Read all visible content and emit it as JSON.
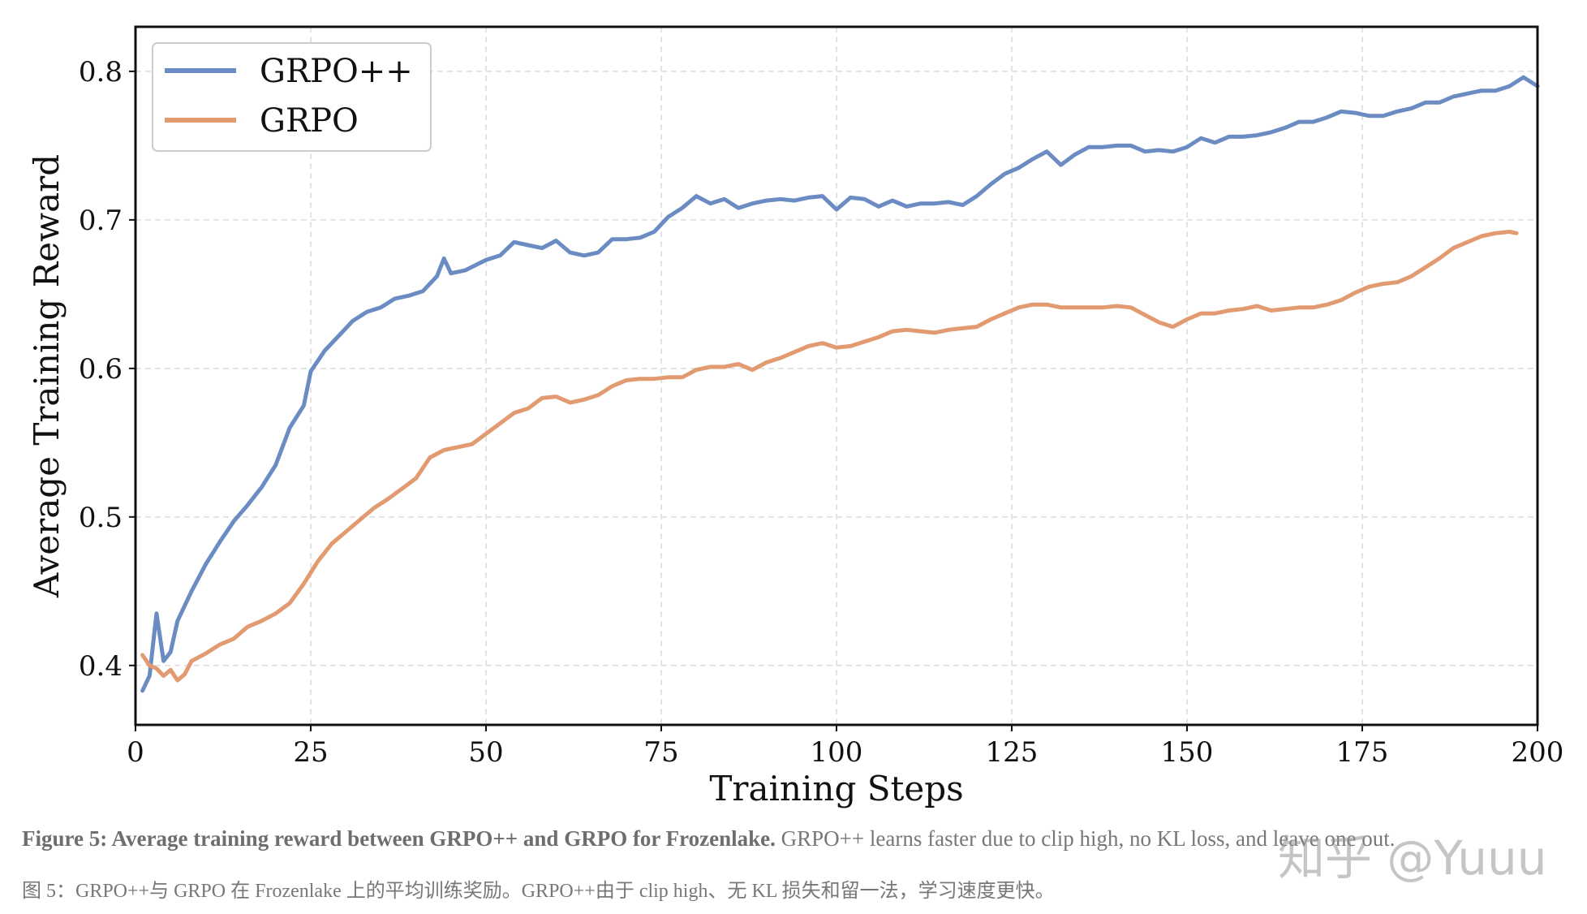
{
  "chart_data": {
    "type": "line",
    "xlabel": "Training Steps",
    "ylabel": "Average Training Reward",
    "xlim": [
      0,
      200
    ],
    "ylim": [
      0.36,
      0.83
    ],
    "xticks": [
      0,
      25,
      50,
      75,
      100,
      125,
      150,
      175,
      200
    ],
    "xtick_labels": [
      "0",
      "25",
      "50",
      "75",
      "100",
      "125",
      "150",
      "175",
      "200"
    ],
    "yticks": [
      0.4,
      0.5,
      0.6,
      0.7,
      0.8
    ],
    "ytick_labels": [
      "0.4",
      "0.5",
      "0.6",
      "0.7",
      "0.8"
    ],
    "grid": true,
    "legend_position": "top-left",
    "series": [
      {
        "name": "GRPO++",
        "color": "#6b8cc3",
        "points": [
          [
            1,
            0.383
          ],
          [
            2,
            0.393
          ],
          [
            3,
            0.435
          ],
          [
            4,
            0.403
          ],
          [
            5,
            0.409
          ],
          [
            6,
            0.43
          ],
          [
            8,
            0.45
          ],
          [
            10,
            0.468
          ],
          [
            12,
            0.483
          ],
          [
            14,
            0.497
          ],
          [
            16,
            0.508
          ],
          [
            18,
            0.52
          ],
          [
            20,
            0.535
          ],
          [
            22,
            0.56
          ],
          [
            24,
            0.575
          ],
          [
            25,
            0.598
          ],
          [
            27,
            0.612
          ],
          [
            29,
            0.622
          ],
          [
            31,
            0.632
          ],
          [
            33,
            0.638
          ],
          [
            35,
            0.641
          ],
          [
            37,
            0.647
          ],
          [
            39,
            0.649
          ],
          [
            41,
            0.652
          ],
          [
            43,
            0.662
          ],
          [
            44,
            0.674
          ],
          [
            45,
            0.664
          ],
          [
            47,
            0.666
          ],
          [
            50,
            0.673
          ],
          [
            52,
            0.676
          ],
          [
            54,
            0.685
          ],
          [
            56,
            0.683
          ],
          [
            58,
            0.681
          ],
          [
            60,
            0.686
          ],
          [
            62,
            0.678
          ],
          [
            64,
            0.676
          ],
          [
            66,
            0.678
          ],
          [
            68,
            0.687
          ],
          [
            70,
            0.687
          ],
          [
            72,
            0.688
          ],
          [
            74,
            0.692
          ],
          [
            76,
            0.702
          ],
          [
            78,
            0.708
          ],
          [
            80,
            0.716
          ],
          [
            82,
            0.711
          ],
          [
            84,
            0.714
          ],
          [
            86,
            0.708
          ],
          [
            88,
            0.711
          ],
          [
            90,
            0.713
          ],
          [
            92,
            0.714
          ],
          [
            94,
            0.713
          ],
          [
            96,
            0.715
          ],
          [
            98,
            0.716
          ],
          [
            100,
            0.707
          ],
          [
            102,
            0.715
          ],
          [
            104,
            0.714
          ],
          [
            106,
            0.709
          ],
          [
            108,
            0.713
          ],
          [
            110,
            0.709
          ],
          [
            112,
            0.711
          ],
          [
            114,
            0.711
          ],
          [
            116,
            0.712
          ],
          [
            118,
            0.71
          ],
          [
            120,
            0.716
          ],
          [
            122,
            0.724
          ],
          [
            124,
            0.731
          ],
          [
            126,
            0.735
          ],
          [
            128,
            0.741
          ],
          [
            130,
            0.746
          ],
          [
            132,
            0.737
          ],
          [
            134,
            0.744
          ],
          [
            136,
            0.749
          ],
          [
            138,
            0.749
          ],
          [
            140,
            0.75
          ],
          [
            142,
            0.75
          ],
          [
            144,
            0.746
          ],
          [
            146,
            0.747
          ],
          [
            148,
            0.746
          ],
          [
            150,
            0.749
          ],
          [
            152,
            0.755
          ],
          [
            154,
            0.752
          ],
          [
            156,
            0.756
          ],
          [
            158,
            0.756
          ],
          [
            160,
            0.757
          ],
          [
            162,
            0.759
          ],
          [
            164,
            0.762
          ],
          [
            166,
            0.766
          ],
          [
            168,
            0.766
          ],
          [
            170,
            0.769
          ],
          [
            172,
            0.773
          ],
          [
            174,
            0.772
          ],
          [
            176,
            0.77
          ],
          [
            178,
            0.77
          ],
          [
            180,
            0.773
          ],
          [
            182,
            0.775
          ],
          [
            184,
            0.779
          ],
          [
            186,
            0.779
          ],
          [
            188,
            0.783
          ],
          [
            190,
            0.785
          ],
          [
            192,
            0.787
          ],
          [
            194,
            0.787
          ],
          [
            196,
            0.79
          ],
          [
            198,
            0.796
          ],
          [
            200,
            0.79
          ]
        ]
      },
      {
        "name": "GRPO",
        "color": "#e29a70",
        "points": [
          [
            1,
            0.407
          ],
          [
            2,
            0.4
          ],
          [
            3,
            0.398
          ],
          [
            4,
            0.393
          ],
          [
            5,
            0.397
          ],
          [
            6,
            0.39
          ],
          [
            7,
            0.394
          ],
          [
            8,
            0.403
          ],
          [
            10,
            0.408
          ],
          [
            12,
            0.414
          ],
          [
            14,
            0.418
          ],
          [
            16,
            0.426
          ],
          [
            18,
            0.43
          ],
          [
            20,
            0.435
          ],
          [
            22,
            0.442
          ],
          [
            24,
            0.455
          ],
          [
            26,
            0.47
          ],
          [
            28,
            0.482
          ],
          [
            30,
            0.49
          ],
          [
            32,
            0.498
          ],
          [
            34,
            0.506
          ],
          [
            36,
            0.512
          ],
          [
            38,
            0.519
          ],
          [
            40,
            0.526
          ],
          [
            42,
            0.54
          ],
          [
            44,
            0.545
          ],
          [
            46,
            0.547
          ],
          [
            48,
            0.549
          ],
          [
            50,
            0.556
          ],
          [
            52,
            0.563
          ],
          [
            54,
            0.57
          ],
          [
            56,
            0.573
          ],
          [
            58,
            0.58
          ],
          [
            60,
            0.581
          ],
          [
            62,
            0.577
          ],
          [
            64,
            0.579
          ],
          [
            66,
            0.582
          ],
          [
            68,
            0.588
          ],
          [
            70,
            0.592
          ],
          [
            72,
            0.593
          ],
          [
            74,
            0.593
          ],
          [
            76,
            0.594
          ],
          [
            78,
            0.594
          ],
          [
            80,
            0.599
          ],
          [
            82,
            0.601
          ],
          [
            84,
            0.601
          ],
          [
            86,
            0.603
          ],
          [
            88,
            0.599
          ],
          [
            90,
            0.604
          ],
          [
            92,
            0.607
          ],
          [
            94,
            0.611
          ],
          [
            96,
            0.615
          ],
          [
            98,
            0.617
          ],
          [
            100,
            0.614
          ],
          [
            102,
            0.615
          ],
          [
            104,
            0.618
          ],
          [
            106,
            0.621
          ],
          [
            108,
            0.625
          ],
          [
            110,
            0.626
          ],
          [
            112,
            0.625
          ],
          [
            114,
            0.624
          ],
          [
            116,
            0.626
          ],
          [
            118,
            0.627
          ],
          [
            120,
            0.628
          ],
          [
            122,
            0.633
          ],
          [
            124,
            0.637
          ],
          [
            126,
            0.641
          ],
          [
            128,
            0.643
          ],
          [
            130,
            0.643
          ],
          [
            132,
            0.641
          ],
          [
            134,
            0.641
          ],
          [
            136,
            0.641
          ],
          [
            138,
            0.641
          ],
          [
            140,
            0.642
          ],
          [
            142,
            0.641
          ],
          [
            144,
            0.636
          ],
          [
            146,
            0.631
          ],
          [
            148,
            0.628
          ],
          [
            150,
            0.633
          ],
          [
            152,
            0.637
          ],
          [
            154,
            0.637
          ],
          [
            156,
            0.639
          ],
          [
            158,
            0.64
          ],
          [
            160,
            0.642
          ],
          [
            162,
            0.639
          ],
          [
            164,
            0.64
          ],
          [
            166,
            0.641
          ],
          [
            168,
            0.641
          ],
          [
            170,
            0.643
          ],
          [
            172,
            0.646
          ],
          [
            174,
            0.651
          ],
          [
            176,
            0.655
          ],
          [
            178,
            0.657
          ],
          [
            180,
            0.658
          ],
          [
            182,
            0.662
          ],
          [
            184,
            0.668
          ],
          [
            186,
            0.674
          ],
          [
            188,
            0.681
          ],
          [
            190,
            0.685
          ],
          [
            192,
            0.689
          ],
          [
            194,
            0.691
          ],
          [
            196,
            0.692
          ],
          [
            197,
            0.691
          ]
        ]
      }
    ]
  },
  "caption": {
    "en_bold": "Figure 5: Average training reward between GRPO++ and GRPO for Frozenlake.",
    "en_rest": " GRPO++ learns faster due to clip high, no KL loss, and leave one out.",
    "zh": "图 5：GRPO++与 GRPO 在 Frozenlake 上的平均训练奖励。GRPO++由于 clip high、无 KL 损失和留一法，学习速度更快。"
  },
  "watermark": "知乎 @Yuuu"
}
